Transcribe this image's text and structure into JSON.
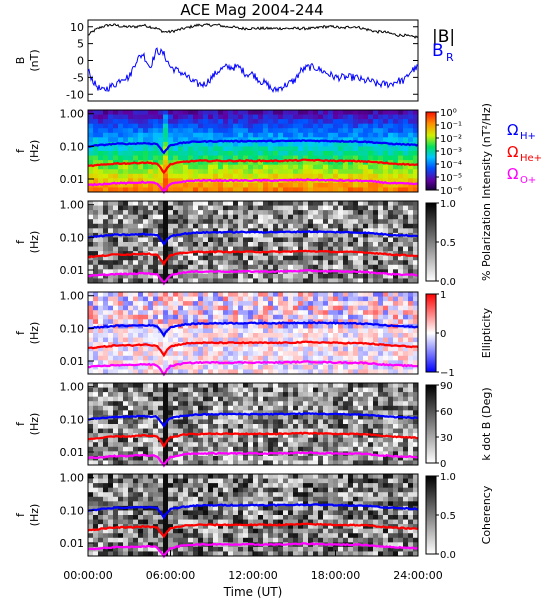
{
  "title": "ACE Mag 2004-244",
  "colors": {
    "B_total": "#000000",
    "B_R": "#0000ff",
    "H_plus": "#0000ff",
    "He_plus": "#ff0000",
    "O_plus": "#ff00ff"
  },
  "chart_data": [
    {
      "type": "line",
      "panel": "magnetic-field",
      "ylabel": "B",
      "yunit": "(nT)",
      "ylim": [
        -12,
        12
      ],
      "yticks": [
        "10",
        "5",
        "0",
        "-5",
        "-10"
      ],
      "xlim_hours": [
        0,
        24
      ],
      "series": [
        {
          "name": "|B|",
          "color": "#000000",
          "x": [
            0,
            0.5,
            1,
            1.5,
            2,
            2.5,
            3,
            3.5,
            4,
            4.5,
            5,
            5.5,
            6,
            6.5,
            7,
            7.5,
            8,
            8.5,
            9,
            9.5,
            10,
            10.5,
            11,
            11.5,
            12,
            12.5,
            13,
            13.5,
            14,
            14.5,
            15,
            15.5,
            16,
            16.5,
            17,
            17.5,
            18,
            18.5,
            19,
            19.5,
            20,
            20.5,
            21,
            21.5,
            22,
            22.5,
            23,
            23.5,
            24
          ],
          "values": [
            7.5,
            9,
            10,
            10.5,
            10.5,
            10,
            10,
            10,
            10.5,
            10,
            9.5,
            8.5,
            8.5,
            9,
            9.5,
            10,
            10.5,
            10.5,
            10.5,
            10.5,
            10,
            10,
            9.5,
            9.5,
            9.5,
            9.5,
            9.5,
            9.5,
            9.5,
            9.5,
            9.5,
            9.5,
            9.5,
            9.5,
            10,
            10,
            10,
            9.5,
            10,
            10,
            9.5,
            9,
            8.5,
            8.5,
            8,
            7.5,
            7.5,
            7,
            7
          ]
        },
        {
          "name": "B",
          "sub": "R",
          "color": "#0000ff",
          "x": [
            0,
            0.5,
            1,
            1.5,
            2,
            2.5,
            3,
            3.5,
            4,
            4.5,
            5,
            5.5,
            6,
            6.5,
            7,
            7.5,
            8,
            8.5,
            9,
            9.5,
            10,
            10.5,
            11,
            11.5,
            12,
            12.5,
            13,
            13.5,
            14,
            14.5,
            15,
            15.5,
            16,
            16.5,
            17,
            17.5,
            18,
            18.5,
            19,
            19.5,
            20,
            20.5,
            21,
            21.5,
            22,
            22.5,
            23,
            23.5,
            24
          ],
          "values": [
            -3,
            -7,
            -9,
            -8,
            -7,
            -5,
            -5,
            0,
            2,
            -2,
            3,
            2,
            -2,
            -3,
            -4,
            -6,
            -7,
            -7,
            -5,
            -3,
            -2,
            -2,
            -2,
            -4,
            -4,
            -6,
            -7,
            -9,
            -8,
            -7,
            -6,
            -3,
            -2,
            -2,
            -3,
            -4,
            -5,
            -5,
            -5,
            -5,
            -6,
            -6,
            -7,
            -7,
            -7,
            -6,
            -6,
            -3,
            -2
          ]
        }
      ]
    },
    {
      "type": "heatmap",
      "panel": "intensity",
      "ylabel": "f",
      "yunit": "(Hz)",
      "yticks": [
        "1.00",
        "0.10",
        "0.01"
      ],
      "colorbar_label": "Intensity (nT²/Hz)",
      "colorbar_ticks": [
        "10⁰",
        "10⁻¹",
        "10⁻²",
        "10⁻³",
        "10⁻⁴",
        "10⁻⁵",
        "10⁻⁶"
      ],
      "colorscale": "rainbow"
    },
    {
      "type": "heatmap",
      "panel": "polarization",
      "ylabel": "f",
      "yunit": "(Hz)",
      "yticks": [
        "1.00",
        "0.10",
        "0.01"
      ],
      "colorbar_label": "% Polarization",
      "colorbar_ticks": [
        "1.0",
        "0.5",
        "0.0"
      ],
      "colorscale": "gray"
    },
    {
      "type": "heatmap",
      "panel": "ellipticity",
      "ylabel": "f",
      "yunit": "(Hz)",
      "yticks": [
        "1.00",
        "0.10",
        "0.01"
      ],
      "colorbar_label": "Ellipticity",
      "colorbar_ticks": [
        "1",
        "0",
        "−1"
      ],
      "colorscale": "red-white-blue"
    },
    {
      "type": "heatmap",
      "panel": "k-dot-b",
      "ylabel": "f",
      "yunit": "(Hz)",
      "yticks": [
        "1.00",
        "0.10",
        "0.01"
      ],
      "colorbar_label": "k dot B (Deg)",
      "colorbar_ticks": [
        "90",
        "60",
        "30",
        "0"
      ],
      "colorscale": "gray"
    },
    {
      "type": "heatmap",
      "panel": "coherency",
      "ylabel": "f",
      "yunit": "(Hz)",
      "yticks": [
        "1.00",
        "0.10",
        "0.01"
      ],
      "colorbar_label": "Coherency",
      "colorbar_ticks": [
        "1.0",
        "0.5",
        "0.0"
      ],
      "colorscale": "gray"
    }
  ],
  "gyrofrequency_lines": {
    "x": [
      0,
      1,
      2,
      3,
      4,
      5,
      5.5,
      6,
      7,
      8,
      10,
      12,
      14,
      16,
      18,
      20,
      22,
      24
    ],
    "H_plus": [
      0.1,
      0.11,
      0.12,
      0.12,
      0.125,
      0.12,
      0.06,
      0.11,
      0.13,
      0.14,
      0.145,
      0.145,
      0.145,
      0.15,
      0.145,
      0.14,
      0.12,
      0.11
    ],
    "He_plus": [
      0.025,
      0.027,
      0.03,
      0.03,
      0.032,
      0.03,
      0.015,
      0.028,
      0.034,
      0.036,
      0.036,
      0.036,
      0.036,
      0.038,
      0.036,
      0.035,
      0.03,
      0.027
    ],
    "O_plus": [
      0.0065,
      0.007,
      0.0075,
      0.0075,
      0.008,
      0.0075,
      0.0038,
      0.007,
      0.0085,
      0.009,
      0.009,
      0.009,
      0.009,
      0.0095,
      0.009,
      0.0088,
      0.0075,
      0.007
    ]
  },
  "legend_top": {
    "btotal_label": "|B|",
    "br_label": "B",
    "br_sub": "R"
  },
  "legend_ions": [
    {
      "name": "Ω",
      "sub": "H+",
      "color": "#0000ff"
    },
    {
      "name": "Ω",
      "sub": "He+",
      "color": "#ff0000"
    },
    {
      "name": "Ω",
      "sub": "O+",
      "color": "#ff00ff"
    }
  ],
  "xaxis": {
    "ticks": [
      "00:00:00",
      "06:00:00",
      "12:00:00",
      "18:00:00",
      "24:00:00"
    ],
    "tick_hours": [
      0,
      6,
      12,
      18,
      24
    ],
    "label": "Time (UT)"
  }
}
